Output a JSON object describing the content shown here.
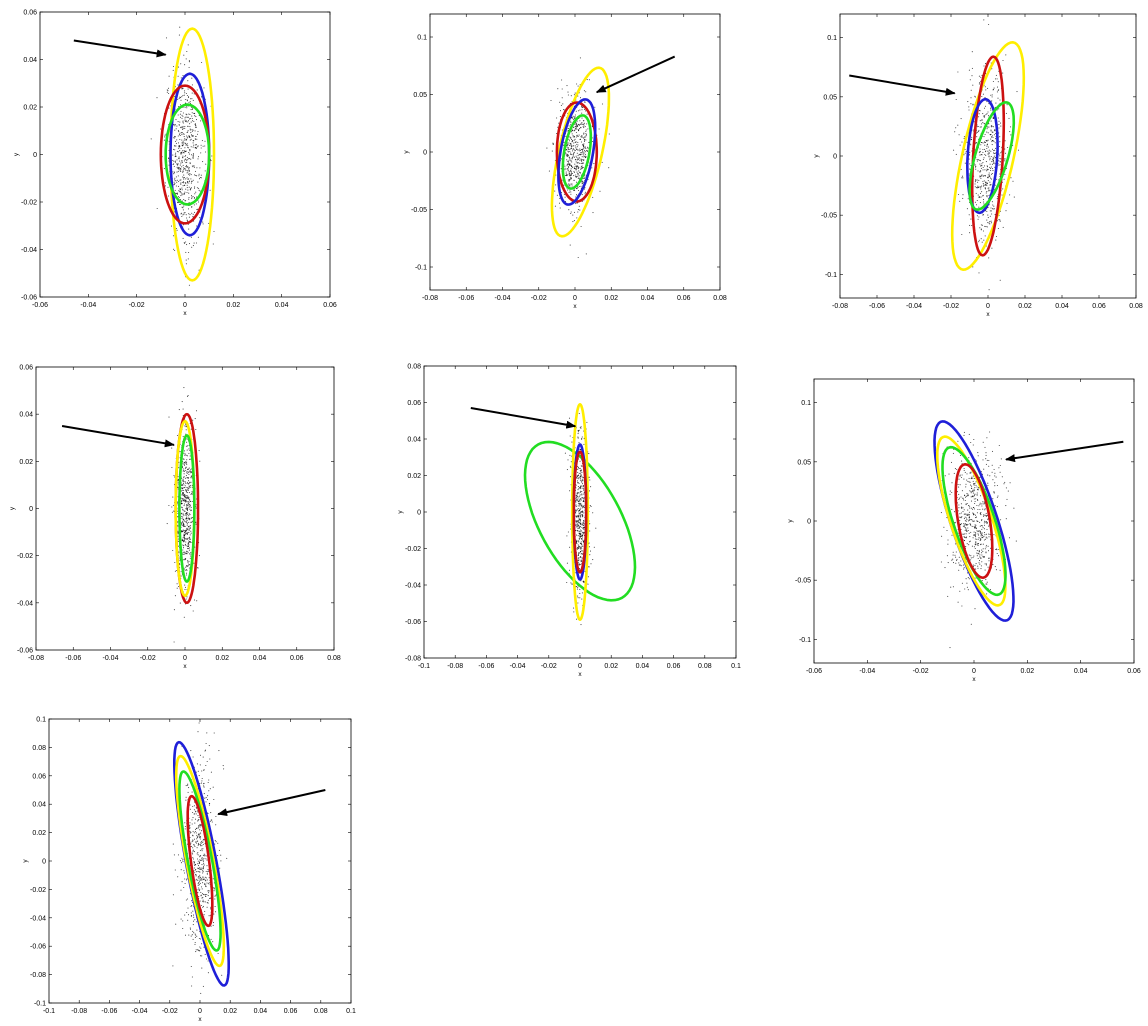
{
  "colors": {
    "blue": "#1f1fd8",
    "red": "#cc1111",
    "green": "#22dd22",
    "yellow": "#ffee00",
    "scatter": "#000000",
    "arrow": "#000000"
  },
  "chart_data": [
    {
      "type": "scatter",
      "xlabel": "x",
      "ylabel": "y",
      "xlim": [
        -0.06,
        0.06
      ],
      "ylim": [
        -0.06,
        0.06
      ],
      "xticks": [
        "-0.06",
        "-0.04",
        "-0.02",
        "0",
        "0.02",
        "0.04",
        "0.06"
      ],
      "yticks": [
        "-0.06",
        "-0.04",
        "-0.02",
        "0",
        "0.02",
        "0.04",
        "0.06"
      ],
      "arrow": {
        "from": [
          -0.046,
          0.048
        ],
        "to": [
          -0.008,
          0.042
        ]
      },
      "scatter_cloud": {
        "center": [
          0.0,
          0.0
        ],
        "sx": 0.004,
        "sy": 0.018
      },
      "ellipses": [
        {
          "color": "yellow",
          "center": [
            0.003,
            0.0
          ],
          "a": 0.053,
          "b": 0.009,
          "angle_deg": 90
        },
        {
          "color": "blue",
          "center": [
            0.002,
            0.0
          ],
          "a": 0.034,
          "b": 0.008,
          "angle_deg": 90
        },
        {
          "color": "red",
          "center": [
            0.0,
            0.0
          ],
          "a": 0.029,
          "b": 0.01,
          "angle_deg": 90
        },
        {
          "color": "green",
          "center": [
            0.001,
            0.0
          ],
          "a": 0.021,
          "b": 0.009,
          "angle_deg": 90
        }
      ]
    },
    {
      "type": "scatter",
      "xlabel": "x",
      "ylabel": "y",
      "xlim": [
        -0.08,
        0.08
      ],
      "ylim": [
        -0.12,
        0.12
      ],
      "xticks": [
        "-0.08",
        "-0.06",
        "-0.04",
        "-0.02",
        "0",
        "0.02",
        "0.04",
        "0.06",
        "0.08"
      ],
      "yticks": [
        "-0.1",
        "-0.05",
        "0",
        "0.05",
        "0.1"
      ],
      "arrow": {
        "from": [
          0.055,
          0.083
        ],
        "to": [
          0.012,
          0.052
        ]
      },
      "scatter_cloud": {
        "center": [
          0.0,
          0.0
        ],
        "sx": 0.005,
        "sy": 0.025
      },
      "ellipses": [
        {
          "color": "yellow",
          "center": [
            0.003,
            0.0
          ],
          "a": 0.074,
          "b": 0.012,
          "angle_deg": 82
        },
        {
          "color": "red",
          "center": [
            0.001,
            0.0
          ],
          "a": 0.043,
          "b": 0.011,
          "angle_deg": 90
        },
        {
          "color": "blue",
          "center": [
            0.001,
            0.0
          ],
          "a": 0.046,
          "b": 0.009,
          "angle_deg": 84
        },
        {
          "color": "green",
          "center": [
            0.001,
            0.0
          ],
          "a": 0.032,
          "b": 0.007,
          "angle_deg": 84
        }
      ]
    },
    {
      "type": "scatter",
      "xlabel": "x",
      "ylabel": "y",
      "xlim": [
        -0.08,
        0.08
      ],
      "ylim": [
        -0.12,
        0.12
      ],
      "xticks": [
        "-0.08",
        "-0.06",
        "-0.04",
        "-0.02",
        "0",
        "0.02",
        "0.04",
        "0.06",
        "0.08"
      ],
      "yticks": [
        "-0.1",
        "-0.05",
        "0",
        "0.05",
        "0.1"
      ],
      "arrow": {
        "from": [
          -0.075,
          0.068
        ],
        "to": [
          -0.018,
          0.053
        ]
      },
      "scatter_cloud": {
        "center": [
          -0.001,
          0.0
        ],
        "sx": 0.006,
        "sy": 0.035
      },
      "ellipses": [
        {
          "color": "yellow",
          "center": [
            0.0,
            0.0
          ],
          "a": 0.097,
          "b": 0.014,
          "angle_deg": 82
        },
        {
          "color": "red",
          "center": [
            0.0,
            0.0
          ],
          "a": 0.084,
          "b": 0.008,
          "angle_deg": 88
        },
        {
          "color": "blue",
          "center": [
            -0.003,
            0.0
          ],
          "a": 0.048,
          "b": 0.008,
          "angle_deg": 88
        },
        {
          "color": "green",
          "center": [
            0.002,
            0.0
          ],
          "a": 0.046,
          "b": 0.009,
          "angle_deg": 80
        }
      ]
    },
    {
      "type": "scatter",
      "xlabel": "x",
      "ylabel": "y",
      "xlim": [
        -0.08,
        0.08
      ],
      "ylim": [
        -0.06,
        0.06
      ],
      "xticks": [
        "-0.08",
        "-0.06",
        "-0.04",
        "-0.02",
        "0",
        "0.02",
        "0.04",
        "0.06",
        "0.08"
      ],
      "yticks": [
        "-0.06",
        "-0.04",
        "-0.02",
        "0",
        "0.02",
        "0.04",
        "0.06"
      ],
      "arrow": {
        "from": [
          -0.066,
          0.035
        ],
        "to": [
          -0.006,
          0.027
        ]
      },
      "scatter_cloud": {
        "center": [
          0.0,
          0.0
        ],
        "sx": 0.003,
        "sy": 0.018
      },
      "ellipses": [
        {
          "color": "red",
          "center": [
            0.001,
            0.0
          ],
          "a": 0.04,
          "b": 0.006,
          "angle_deg": 90
        },
        {
          "color": "yellow",
          "center": [
            0.0,
            0.0
          ],
          "a": 0.037,
          "b": 0.005,
          "angle_deg": 90
        },
        {
          "color": "green",
          "center": [
            0.001,
            0.0
          ],
          "a": 0.031,
          "b": 0.004,
          "angle_deg": 90
        }
      ]
    },
    {
      "type": "scatter",
      "xlabel": "x",
      "ylabel": "y",
      "xlim": [
        -0.1,
        0.1
      ],
      "ylim": [
        -0.08,
        0.08
      ],
      "xticks": [
        "-0.1",
        "-0.08",
        "-0.06",
        "-0.04",
        "-0.02",
        "0",
        "0.02",
        "0.04",
        "0.06",
        "0.08",
        "0.1"
      ],
      "yticks": [
        "-0.08",
        "-0.06",
        "-0.04",
        "-0.02",
        "0",
        "0.02",
        "0.04",
        "0.06",
        "0.08"
      ],
      "arrow": {
        "from": [
          -0.07,
          0.057
        ],
        "to": [
          -0.003,
          0.047
        ]
      },
      "scatter_cloud": {
        "center": [
          0.0,
          0.0
        ],
        "sx": 0.003,
        "sy": 0.022
      },
      "ellipses": [
        {
          "color": "green",
          "center": [
            0.0,
            -0.005
          ],
          "a": 0.05,
          "b": 0.025,
          "angle_deg": 125
        },
        {
          "color": "yellow",
          "center": [
            0.0,
            0.0
          ],
          "a": 0.059,
          "b": 0.005,
          "angle_deg": 90
        },
        {
          "color": "blue",
          "center": [
            0.0,
            0.0
          ],
          "a": 0.037,
          "b": 0.004,
          "angle_deg": 90
        },
        {
          "color": "red",
          "center": [
            0.0,
            0.0
          ],
          "a": 0.033,
          "b": 0.004,
          "angle_deg": 90
        }
      ]
    },
    {
      "type": "scatter",
      "xlabel": "x",
      "ylabel": "y",
      "xlim": [
        -0.06,
        0.06
      ],
      "ylim": [
        -0.12,
        0.12
      ],
      "xticks": [
        "-0.06",
        "-0.04",
        "-0.02",
        "0",
        "0.02",
        "0.04",
        "0.06"
      ],
      "yticks": [
        "-0.1",
        "-0.05",
        "0",
        "0.05",
        "0.1"
      ],
      "arrow": {
        "from": [
          0.056,
          0.067
        ],
        "to": [
          0.012,
          0.052
        ]
      },
      "scatter_cloud": {
        "center": [
          0.0,
          0.0
        ],
        "sx": 0.005,
        "sy": 0.03
      },
      "ellipses": [
        {
          "color": "blue",
          "center": [
            0.0,
            0.0
          ],
          "a": 0.085,
          "b": 0.009,
          "angle_deg": 98
        },
        {
          "color": "yellow",
          "center": [
            -0.001,
            0.0
          ],
          "a": 0.072,
          "b": 0.008,
          "angle_deg": 98
        },
        {
          "color": "green",
          "center": [
            0.0,
            0.0
          ],
          "a": 0.063,
          "b": 0.008,
          "angle_deg": 98
        },
        {
          "color": "red",
          "center": [
            0.0,
            0.0
          ],
          "a": 0.048,
          "b": 0.006,
          "angle_deg": 94
        }
      ]
    },
    {
      "type": "scatter",
      "xlabel": "x",
      "ylabel": "y",
      "xlim": [
        -0.1,
        0.1
      ],
      "ylim": [
        -0.1,
        0.1
      ],
      "xticks": [
        "-0.1",
        "-0.08",
        "-0.06",
        "-0.04",
        "-0.02",
        "0",
        "0.02",
        "0.04",
        "0.06",
        "0.08",
        "0.1"
      ],
      "yticks": [
        "-0.1",
        "-0.08",
        "-0.06",
        "-0.04",
        "-0.02",
        "0",
        "0.02",
        "0.04",
        "0.06",
        "0.08",
        "0.1"
      ],
      "arrow": {
        "from": [
          0.083,
          0.05
        ],
        "to": [
          0.012,
          0.033
        ]
      },
      "scatter_cloud": {
        "center": [
          0.0,
          0.0
        ],
        "sx": 0.006,
        "sy": 0.035
      },
      "ellipses": [
        {
          "color": "blue",
          "center": [
            0.001,
            -0.002
          ],
          "a": 0.087,
          "b": 0.01,
          "angle_deg": 100
        },
        {
          "color": "yellow",
          "center": [
            0.0,
            0.0
          ],
          "a": 0.075,
          "b": 0.009,
          "angle_deg": 100
        },
        {
          "color": "green",
          "center": [
            0.0,
            0.0
          ],
          "a": 0.064,
          "b": 0.008,
          "angle_deg": 100
        },
        {
          "color": "red",
          "center": [
            0.0,
            0.0
          ],
          "a": 0.046,
          "b": 0.006,
          "angle_deg": 97
        }
      ]
    }
  ]
}
